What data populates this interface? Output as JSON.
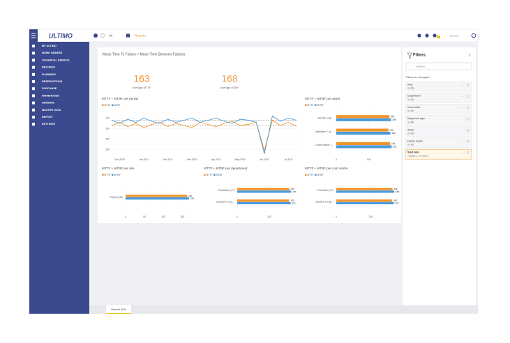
{
  "header": {
    "logo": "ULTIMO",
    "breadcrumb": "Reports",
    "user": "Maerts"
  },
  "sidebar": {
    "items": [
      "MY ULTIMO",
      "WORK ORDERS",
      "TECHNICAL SERVICE",
      "RECORDS",
      "PLANNING",
      "RESERVATIONS",
      "PURCHASE",
      "WAREHOUSE",
      "GENERAL",
      "MASTER DATA",
      "REPORT",
      "SETTINGS"
    ]
  },
  "report": {
    "title": "Mean Time To Failure + Mean Time Between Failures",
    "kpis": [
      {
        "value": 163,
        "label": "Average MTTF",
        "color": "#f0962a"
      },
      {
        "value": 168,
        "label": "Average MTBF",
        "color": "#e8a24a"
      }
    ],
    "charts": [
      {
        "type": "line",
        "title": "MTTF + MTBF per period",
        "categories": [
          null,
          "Dec 2020",
          null,
          null,
          "Jan 2021",
          null,
          null,
          "Feb 2021",
          null,
          null,
          "Mar 2021",
          null,
          null,
          "Apr 2021",
          null,
          null,
          "May 2021",
          null,
          null,
          "Jun 2021",
          null,
          null,
          "Jul 2021",
          null
        ],
        "series": [
          {
            "name": "MTTF",
            "color": "#f0962a",
            "values": [
              163,
              166,
              162,
              165,
              161,
              164,
              166,
              162,
              165,
              163,
              161,
              166,
              164,
              162,
              165,
              167,
              163,
              164,
              166,
              139,
              168,
              163,
              166,
              162
            ]
          },
          {
            "name": "MTBF",
            "color": "#4a9ad9",
            "values": [
              168,
              165,
              169,
              166,
              170,
              167,
              165,
              169,
              166,
              168,
              170,
              166,
              168,
              170,
              167,
              165,
              169,
              168,
              166,
              136,
              172,
              167,
              170,
              168
            ]
          }
        ],
        "ylim": [
          135,
          175
        ],
        "yticks": [
          140,
          150,
          160,
          170
        ]
      },
      {
        "type": "hbar",
        "title": "MTTF + MTBF per asset",
        "categories": [
          "Tank Bio 4 (A...",
          "Installation 1 (A...",
          "Crate washer 1..."
        ],
        "series": [
          {
            "name": "MTTF",
            "color": "#f0962a",
            "values": [
              163,
              160,
              165
            ]
          },
          {
            "name": "MTBF",
            "color": "#4a9ad9",
            "values": [
              168,
              166,
              170
            ]
          }
        ],
        "xlim": [
          0,
          180
        ],
        "xticks": [
          0,
          100
        ]
      },
      {
        "type": "hbar",
        "title": "MTTF + MTBF per site",
        "categories": [
          "Factory (50)"
        ],
        "series": [
          {
            "name": "MTTF",
            "color": "#f0962a",
            "values": [
              163
            ]
          },
          {
            "name": "MTBF",
            "color": "#4a9ad9",
            "values": [
              168
            ]
          }
        ],
        "xlim": [
          0,
          170
        ],
        "xticks": [
          0,
          50,
          100,
          150
        ]
      },
      {
        "type": "hbar",
        "title": "MTTF + MTBF per department",
        "categories": [
          "Production (17)",
          "Dispatch & Log..."
        ],
        "series": [
          {
            "name": "MTTF",
            "color": "#f0962a",
            "values": [
              163,
              162
            ]
          },
          {
            "name": "MTBF",
            "color": "#4a9ad9",
            "values": [
              168,
              167
            ]
          }
        ],
        "xlim": [
          0,
          170
        ],
        "xticks": [
          0,
          100
        ]
      },
      {
        "type": "hbar",
        "title": "MTTF + MTBF per cost centre",
        "categories": [
          "Production (17)",
          "Dispatch & Logi..."
        ],
        "series": [
          {
            "name": "MTTF",
            "color": "#f0962a",
            "values": [
              163,
              162
            ]
          },
          {
            "name": "MTBF",
            "color": "#4a9ad9",
            "values": [
              168,
              167
            ]
          }
        ],
        "xlim": [
          0,
          170
        ],
        "xticks": [
          0,
          100
        ]
      }
    ]
  },
  "filters": {
    "title": "Filters",
    "search": "Search",
    "subtitle": "Filters on all pages",
    "items": [
      {
        "name": "Area",
        "value": "is (All)"
      },
      {
        "name": "Department",
        "value": "is (All)"
      },
      {
        "name": "Cost centre",
        "value": "is (All)"
      },
      {
        "name": "Equipment type",
        "value": "is (All)"
      },
      {
        "name": "Asset",
        "value": "is (All)"
      },
      {
        "name": "Failure cause",
        "value": "is (All)"
      },
      {
        "name": "Start date",
        "value": "7/6/2021 - 7/7/2021"
      }
    ]
  },
  "tabs": [
    "Reports (5%)"
  ]
}
